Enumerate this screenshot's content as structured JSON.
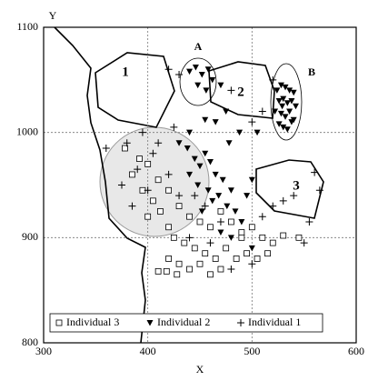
{
  "chart_data": {
    "type": "scatter",
    "x_label": "X",
    "y_label": "Y",
    "xlim": [
      300,
      600
    ],
    "ylim": [
      800,
      1100
    ],
    "xticks": [
      300,
      400,
      500,
      600
    ],
    "yticks": [
      800,
      900,
      1000,
      1100
    ],
    "grid": true,
    "legend": "lower left",
    "annotations": [
      "1",
      "2",
      "3",
      "A",
      "B"
    ],
    "series": [
      {
        "name": "Individual 3",
        "marker": "square",
        "color": "#000000",
        "x": [
          378,
          392,
          385,
          400,
          410,
          395,
          405,
          420,
          412,
          430,
          440,
          450,
          460,
          470,
          480,
          490,
          500,
          510,
          520,
          530,
          545,
          425,
          435,
          445,
          455,
          465,
          475,
          485,
          495,
          505,
          515,
          420,
          430,
          440,
          450,
          410,
          418,
          428,
          460,
          470,
          490,
          420,
          400
        ],
        "values": [
          985,
          975,
          960,
          970,
          955,
          945,
          935,
          945,
          925,
          930,
          920,
          915,
          910,
          925,
          915,
          905,
          910,
          900,
          895,
          902,
          900,
          900,
          895,
          890,
          885,
          880,
          890,
          880,
          885,
          880,
          885,
          880,
          875,
          870,
          875,
          868,
          868,
          865,
          865,
          870,
          900,
          910,
          920
        ]
      },
      {
        "name": "Individual 2",
        "marker": "triangle-down",
        "color": "#000000",
        "x": [
          524,
          528,
          532,
          536,
          540,
          526,
          530,
          534,
          538,
          542,
          522,
          528,
          532,
          536,
          540,
          526,
          530,
          534,
          538,
          529,
          440,
          446,
          452,
          458,
          448,
          456,
          462,
          470,
          430,
          438,
          445,
          450,
          455,
          460,
          465,
          472,
          440,
          448,
          458,
          468,
          476,
          484,
          490,
          480,
          462,
          452,
          470,
          495,
          500,
          505,
          488,
          478,
          465,
          475,
          455,
          440,
          480,
          500
        ],
        "values": [
          1040,
          1045,
          1043,
          1040,
          1038,
          1030,
          1032,
          1028,
          1030,
          1025,
          1020,
          1018,
          1015,
          1020,
          1012,
          1008,
          1005,
          1003,
          1010,
          1025,
          1058,
          1062,
          1055,
          1060,
          1045,
          1040,
          1050,
          1045,
          990,
          985,
          975,
          968,
          980,
          972,
          960,
          955,
          960,
          950,
          945,
          940,
          930,
          925,
          915,
          945,
          935,
          925,
          905,
          940,
          955,
          1000,
          1000,
          990,
          1010,
          1020,
          1012,
          1000,
          900,
          890
        ]
      },
      {
        "name": "Individual 1",
        "marker": "plus",
        "color": "#000000",
        "x": [
          380,
          395,
          410,
          425,
          405,
          390,
          420,
          385,
          400,
          430,
          445,
          455,
          470,
          440,
          460,
          480,
          500,
          510,
          520,
          530,
          540,
          555,
          550,
          560,
          565,
          360,
          375,
          420,
          430,
          500,
          510,
          520,
          480
        ],
        "values": [
          990,
          1000,
          990,
          1005,
          980,
          965,
          960,
          930,
          945,
          940,
          940,
          930,
          915,
          900,
          895,
          870,
          875,
          920,
          930,
          935,
          940,
          915,
          895,
          962,
          945,
          985,
          950,
          1060,
          1055,
          1010,
          1020,
          1050,
          1040
        ]
      }
    ]
  }
}
